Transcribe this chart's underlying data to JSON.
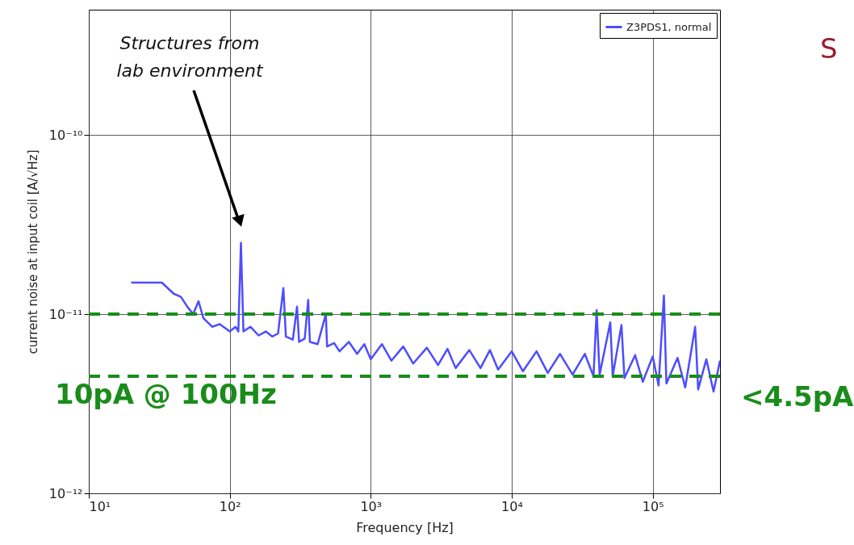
{
  "chart_data": {
    "type": "line",
    "xlabel": "Frequency [Hz]",
    "ylabel": "current noise at input coil [A/√Hz]",
    "log": "xy",
    "grid": true,
    "legend": "top right",
    "line_style": "solid",
    "marker": "none",
    "xlim": [
      10,
      300000
    ],
    "xticks": [
      {
        "value": 10,
        "label": "10¹"
      },
      {
        "value": 100,
        "label": "10²"
      },
      {
        "value": 1000,
        "label": "10³"
      },
      {
        "value": 10000,
        "label": "10⁴"
      },
      {
        "value": 100000,
        "label": "10⁵"
      }
    ],
    "ylim": [
      1e-12,
      5e-10
    ],
    "yticks": [
      {
        "value": 1e-12,
        "label": "10⁻¹²"
      },
      {
        "value": 1e-11,
        "label": "10⁻¹¹"
      },
      {
        "value": 1e-10,
        "label": "10⁻¹⁰"
      }
    ],
    "series": [
      {
        "name": "Z3PDS1, normal",
        "color": "#4d4dff",
        "x": [
          20,
          25,
          33,
          40,
          45,
          50,
          55,
          60,
          65,
          75,
          85,
          100,
          110,
          115,
          120,
          125,
          140,
          160,
          180,
          200,
          220,
          240,
          250,
          280,
          300,
          310,
          340,
          360,
          370,
          420,
          480,
          490,
          550,
          600,
          700,
          800,
          900,
          1000,
          1200,
          1400,
          1700,
          2000,
          2500,
          3000,
          3500,
          4000,
          5000,
          6000,
          7000,
          8000,
          10000,
          12000,
          15000,
          18000,
          22000,
          27000,
          33000,
          38000,
          40000,
          42000,
          50000,
          52000,
          60000,
          63000,
          75000,
          85000,
          100000,
          110000,
          120000,
          125000,
          150000,
          170000,
          200000,
          210000,
          240000,
          270000,
          300000
        ],
        "values": [
          1.5e-11,
          1.5e-11,
          1.5e-11,
          1.3e-11,
          1.25e-11,
          1.1e-11,
          1e-11,
          1.18e-11,
          9.5e-12,
          8.5e-12,
          8.8e-12,
          8e-12,
          8.5e-12,
          8e-12,
          2.5e-11,
          8e-12,
          8.5e-12,
          7.6e-12,
          8e-12,
          7.5e-12,
          7.8e-12,
          1.4e-11,
          7.5e-12,
          7.2e-12,
          1.1e-11,
          7e-12,
          7.3e-12,
          1.2e-11,
          7e-12,
          6.8e-12,
          1e-11,
          6.6e-12,
          6.9e-12,
          6.2e-12,
          7e-12,
          6e-12,
          6.8e-12,
          5.6e-12,
          6.8e-12,
          5.5e-12,
          6.6e-12,
          5.3e-12,
          6.5e-12,
          5.2e-12,
          6.4e-12,
          5e-12,
          6.3e-12,
          5e-12,
          6.3e-12,
          4.9e-12,
          6.2e-12,
          4.8e-12,
          6.2e-12,
          4.7e-12,
          6e-12,
          4.6e-12,
          6e-12,
          4.5e-12,
          1.05e-11,
          4.6e-12,
          9e-12,
          4.5e-12,
          8.7e-12,
          4.4e-12,
          5.9e-12,
          4.2e-12,
          5.8e-12,
          4e-12,
          1.27e-11,
          4.1e-12,
          5.7e-12,
          3.9e-12,
          8.5e-12,
          3.8e-12,
          5.6e-12,
          3.7e-12,
          5.5e-12
        ]
      }
    ],
    "ref_lines": [
      {
        "axis": "y",
        "value": 1e-11,
        "label": "10pA @ 100Hz",
        "color": "#1a8c1a",
        "line_style": "dashed"
      },
      {
        "axis": "y",
        "value": 4.5e-12,
        "label": "<4.5pA",
        "color": "#1a8c1a",
        "line_style": "dashed"
      }
    ],
    "annotations": [
      "Structures from lab environment",
      "S"
    ]
  }
}
